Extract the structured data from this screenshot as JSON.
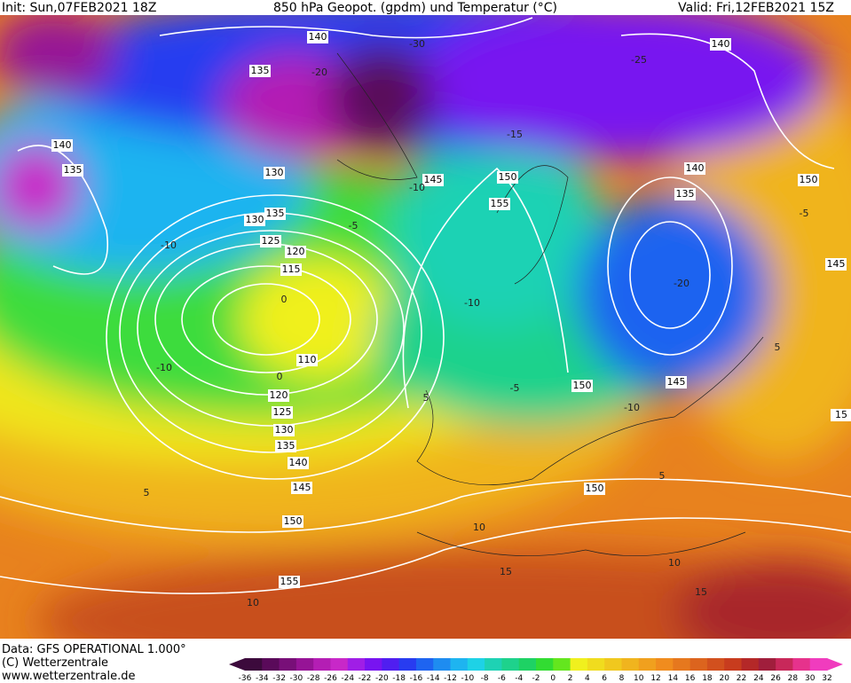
{
  "header": {
    "init": "Init: Sun,07FEB2021 18Z",
    "title": "850 hPa Geopot. (gpdm) und Temperatur (°C)",
    "valid": "Valid: Fri,12FEB2021 15Z"
  },
  "map": {
    "geopotential_labels": [
      "140",
      "135",
      "140",
      "135",
      "130",
      "135",
      "130",
      "125",
      "120",
      "115",
      "110",
      "120",
      "125",
      "130",
      "135",
      "140",
      "145",
      "150",
      "155",
      "150",
      "150",
      "145",
      "155",
      "150",
      "145",
      "140",
      "140",
      "135",
      "150",
      "145",
      "15"
    ],
    "temperature_labels": [
      "-30",
      "-20",
      "-25",
      "-15",
      "-10",
      "-5",
      "-10",
      "-10",
      "-20",
      "-10",
      "-5",
      "-10",
      "0",
      "5",
      "-5",
      "5",
      "5",
      "5",
      "10",
      "10",
      "15",
      "15",
      "10",
      "0"
    ]
  },
  "footer": {
    "data": "Data: GFS OPERATIONAL 1.000°",
    "copyright": "(C) Wetterzentrale",
    "url": "www.wetterzentrale.de"
  },
  "colorbar": {
    "labels": [
      -36,
      -34,
      -32,
      -30,
      -28,
      -26,
      -24,
      -22,
      -20,
      -18,
      -16,
      -14,
      -12,
      -10,
      -8,
      -6,
      -4,
      -2,
      0,
      2,
      4,
      6,
      8,
      10,
      12,
      14,
      16,
      18,
      20,
      22,
      24,
      26,
      28,
      30,
      32
    ],
    "colors": [
      "#3c0a3c",
      "#5a0a5a",
      "#780f78",
      "#961496",
      "#b41eb4",
      "#c828c8",
      "#a01ee6",
      "#7814f0",
      "#501ef0",
      "#283cf0",
      "#1e64f0",
      "#1e8cf0",
      "#1eb4f0",
      "#1ed2e6",
      "#1ed2b4",
      "#1ed28c",
      "#1ed264",
      "#32dc32",
      "#64e61e",
      "#f0f01e",
      "#f0dc1e",
      "#f0c81e",
      "#f0b41e",
      "#f0a01e",
      "#f08c1e",
      "#e6781e",
      "#dc641e",
      "#d2501e",
      "#c83c1e",
      "#b42828",
      "#a01e3c",
      "#c8285a",
      "#e6328c",
      "#f03cbe"
    ]
  }
}
